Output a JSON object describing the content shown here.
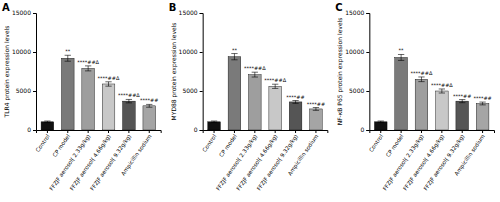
{
  "chart_data": [
    {
      "type": "bar",
      "title": "A",
      "ylabel": "TLR4 protein expression levels",
      "categories": [
        "Control",
        "CP model",
        "FFZJF aerosol( 2.33g/kg)",
        "FFZJF aerosol( 4.66g/kg)",
        "FFZJF aerosol( 9.32g/kg)",
        "Ampicillin sodium"
      ],
      "values": [
        1050,
        9200,
        7900,
        5900,
        3700,
        3100
      ],
      "errors": [
        100,
        380,
        320,
        280,
        220,
        180
      ],
      "colors": [
        "#111111",
        "#7a7a7a",
        "#9e9e9e",
        "#c8c8c8",
        "#555555",
        "#a5a5a5"
      ],
      "annotations": [
        null,
        "**",
        "****##Δ",
        "****##Δ",
        "****##Δ",
        "****##"
      ],
      "ylim": [
        0,
        15000
      ],
      "yticks": [
        0,
        5000,
        10000,
        15000
      ],
      "grid": false
    },
    {
      "type": "bar",
      "title": "B",
      "ylabel": "MYD88 protein expression levels",
      "categories": [
        "Control",
        "CP model",
        "FFZJF aerosol( 2.33g/kg)",
        "FFZJF aerosol( 4.66g/kg)",
        "FFZJF aerosol( 9.32g/kg)",
        "Ampicillin sodium"
      ],
      "values": [
        1050,
        9400,
        7100,
        5600,
        3600,
        2700
      ],
      "errors": [
        100,
        400,
        310,
        270,
        180,
        180
      ],
      "colors": [
        "#111111",
        "#7a7a7a",
        "#9e9e9e",
        "#c8c8c8",
        "#555555",
        "#a5a5a5"
      ],
      "annotations": [
        null,
        "**",
        "****##Δ",
        "****##Δ",
        "****##",
        "****##"
      ],
      "ylim": [
        0,
        15000
      ],
      "yticks": [
        0,
        5000,
        10000,
        15000
      ],
      "grid": false
    },
    {
      "type": "bar",
      "title": "C",
      "ylabel": "NF-κB P65 protein expression levels",
      "categories": [
        "Control",
        "CP model",
        "FFZJF aerosol( 2.33g/kg)",
        "FFZJF aerosol( 4.66g/kg)",
        "FFZJF aerosol( 9.32g/kg)",
        "Ampicillin sodium"
      ],
      "values": [
        1050,
        9300,
        6500,
        5000,
        3700,
        3400
      ],
      "errors": [
        100,
        380,
        300,
        260,
        200,
        180
      ],
      "colors": [
        "#111111",
        "#7a7a7a",
        "#9e9e9e",
        "#c8c8c8",
        "#555555",
        "#a5a5a5"
      ],
      "annotations": [
        null,
        "**",
        "****##Δ",
        "****##Δ",
        "****##",
        "****##"
      ],
      "ylim": [
        0,
        15000
      ],
      "yticks": [
        0,
        5000,
        10000,
        15000
      ],
      "grid": false
    }
  ]
}
